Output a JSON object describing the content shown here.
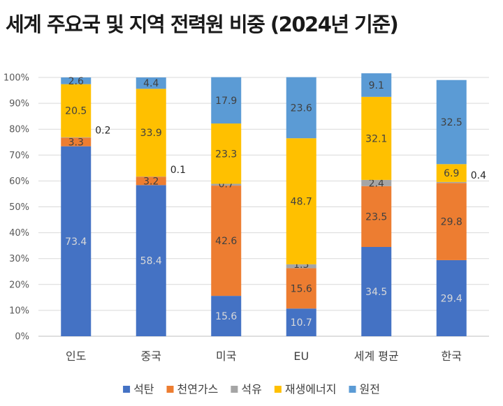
{
  "title": "세계 주요국 및 지역 전력원 비중 (2024년 기준)",
  "chart_data": {
    "type": "bar",
    "stacked": true,
    "categories": [
      "인도",
      "중국",
      "미국",
      "EU",
      "세계 평균",
      "한국"
    ],
    "yticks": [
      "0%",
      "10%",
      "20%",
      "30%",
      "40%",
      "50%",
      "60%",
      "70%",
      "80%",
      "90%",
      "100%"
    ],
    "ylim": [
      0,
      100
    ],
    "grid": true,
    "legend_position": "bottom",
    "series": [
      {
        "name": "석탄",
        "color": "#4472C4",
        "label_color": "#d9d9d9",
        "values": [
          73.4,
          58.4,
          15.6,
          10.7,
          34.5,
          29.4
        ]
      },
      {
        "name": "천연가스",
        "color": "#ED7D31",
        "label_color": "#404040",
        "values": [
          3.3,
          3.2,
          42.6,
          15.6,
          23.5,
          29.8
        ]
      },
      {
        "name": "석유",
        "color": "#A5A5A5",
        "label_color": "#404040",
        "values": [
          0.2,
          0.1,
          0.7,
          1.5,
          2.4,
          0.4
        ]
      },
      {
        "name": "재생에너지",
        "color": "#FFC000",
        "label_color": "#404040",
        "values": [
          20.5,
          33.9,
          23.3,
          48.7,
          32.1,
          6.9
        ]
      },
      {
        "name": "원전",
        "color": "#5B9BD5",
        "label_color": "#404040",
        "values": [
          2.6,
          4.4,
          17.9,
          23.6,
          9.1,
          32.5
        ]
      }
    ]
  }
}
